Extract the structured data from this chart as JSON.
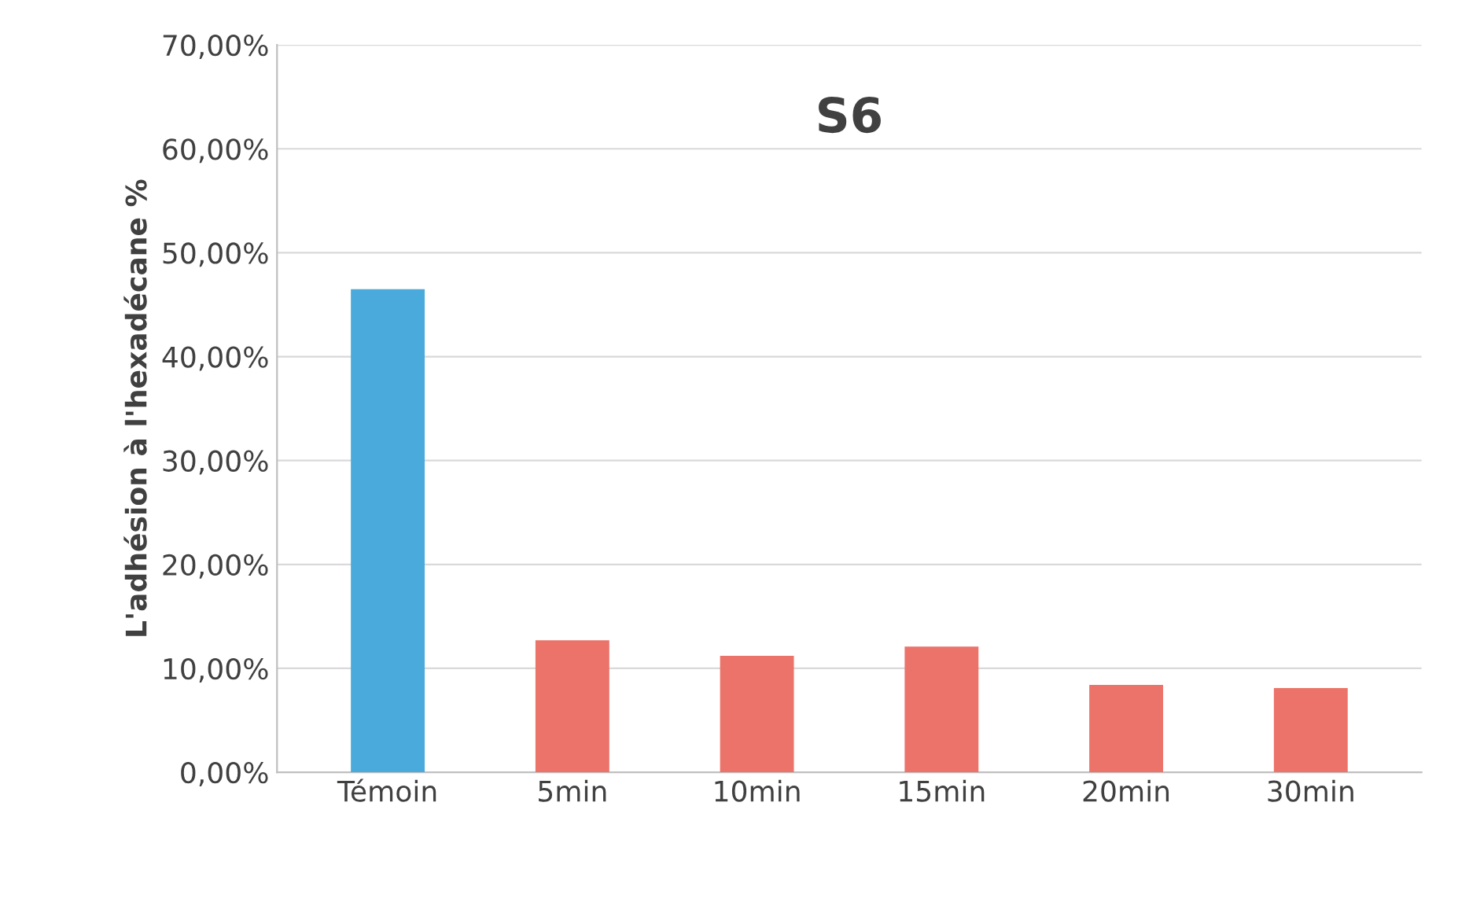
{
  "chart_data": {
    "type": "bar",
    "title": "S6",
    "ylabel": "L'adhésion à l'hexadécane %",
    "categories": [
      "Témoin",
      "5min",
      "10min",
      "15min",
      "20min",
      "30min"
    ],
    "values": [
      46.5,
      12.7,
      11.2,
      12.1,
      8.4,
      8.1
    ],
    "colors": [
      "#4aaadb",
      "#ec7369",
      "#ec7369",
      "#ec7369",
      "#ec7369",
      "#ec7369"
    ],
    "ylim": [
      0,
      70
    ],
    "yticks": [
      {
        "value": 0,
        "label": "0,00%"
      },
      {
        "value": 10,
        "label": "10,00%"
      },
      {
        "value": 20,
        "label": "20,00%"
      },
      {
        "value": 30,
        "label": "30,00%"
      },
      {
        "value": 40,
        "label": "40,00%"
      },
      {
        "value": 50,
        "label": "50,00%"
      },
      {
        "value": 60,
        "label": "60,00%"
      },
      {
        "value": 70,
        "label": "70,00%"
      }
    ],
    "grid": "y",
    "legend": false
  }
}
